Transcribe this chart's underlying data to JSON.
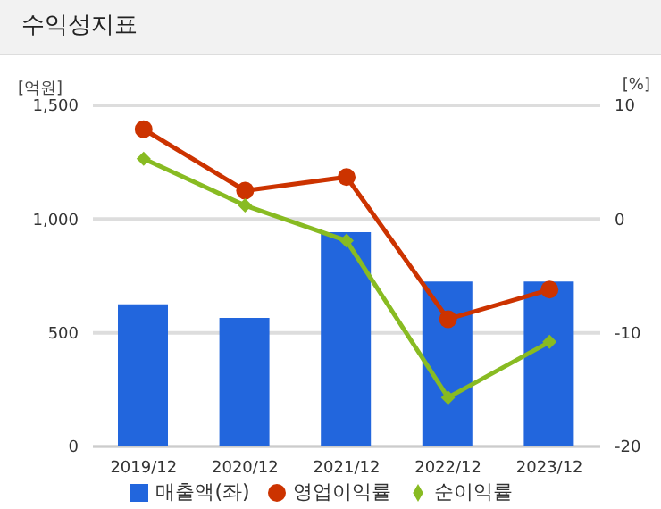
{
  "chart_data": {
    "type": "bar",
    "title": "수익성지표",
    "ylabel": "[억원]",
    "y2label": "[%]",
    "categories": [
      "2019/12",
      "2020/12",
      "2021/12",
      "2022/12",
      "2023/12"
    ],
    "series": [
      {
        "name": "매출액(좌)",
        "color": "#2266dd",
        "values": [
          625,
          565,
          942,
          725,
          725
        ]
      },
      {
        "name": "영업이익률",
        "type": "line",
        "axis": "y2",
        "marker": "circle",
        "color": "#cc3300",
        "values": [
          7.9,
          2.5,
          3.7,
          -8.8,
          -6.2
        ]
      },
      {
        "name": "순이익률",
        "type": "line",
        "axis": "y2",
        "marker": "diamond",
        "color": "#88bb22",
        "values": [
          5.3,
          1.2,
          -1.9,
          -15.7,
          -10.8
        ]
      }
    ],
    "ylim": [
      0,
      1500
    ],
    "yticks": [
      0,
      {
        "value": 500,
        "label": "500"
      },
      {
        "value": 1000,
        "label": "1,000"
      },
      {
        "value": 1500,
        "label": "1,500"
      }
    ],
    "y2lim": [
      -20,
      10
    ],
    "y2ticks": [
      -20,
      -10,
      0,
      10
    ],
    "grid": "y",
    "legend": "bottom"
  }
}
